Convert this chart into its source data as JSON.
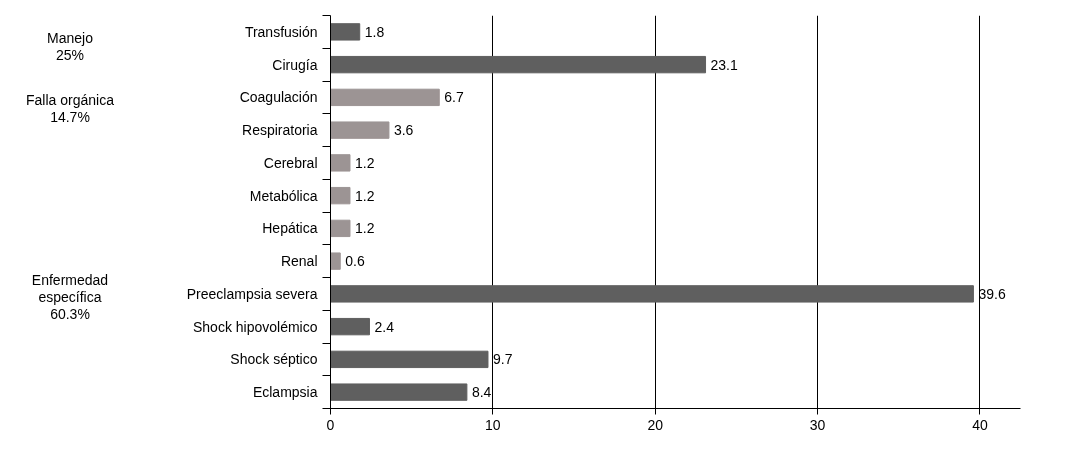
{
  "chart_data": {
    "type": "bar",
    "orientation": "horizontal",
    "categories": [
      "Transfusión",
      "Cirugía",
      "Coagulación",
      "Respiratoria",
      "Cerebral",
      "Metabólica",
      "Hepática",
      "Renal",
      "Preeclampsia severa",
      "Shock hipovolémico",
      "Shock séptico",
      "Eclampsia"
    ],
    "values": [
      1.8,
      23.1,
      6.7,
      3.6,
      1.2,
      1.2,
      1.2,
      0.6,
      39.6,
      2.4,
      9.7,
      8.4
    ],
    "colors": [
      "#5f5f5f",
      "#5f5f5f",
      "#9c9494",
      "#9c9494",
      "#9c9494",
      "#9c9494",
      "#9c9494",
      "#9c9494",
      "#5f5f5f",
      "#5f5f5f",
      "#5f5f5f",
      "#5f5f5f"
    ],
    "xlim": [
      0,
      42.5
    ],
    "xticks": [
      0,
      10,
      20,
      30,
      40
    ],
    "grid": "x",
    "data_labels": true,
    "annotations": [
      "Manejo\n25%",
      "Falla orgánica\n14.7%",
      "Enfermedad\nespecífica\n60.3%"
    ]
  }
}
